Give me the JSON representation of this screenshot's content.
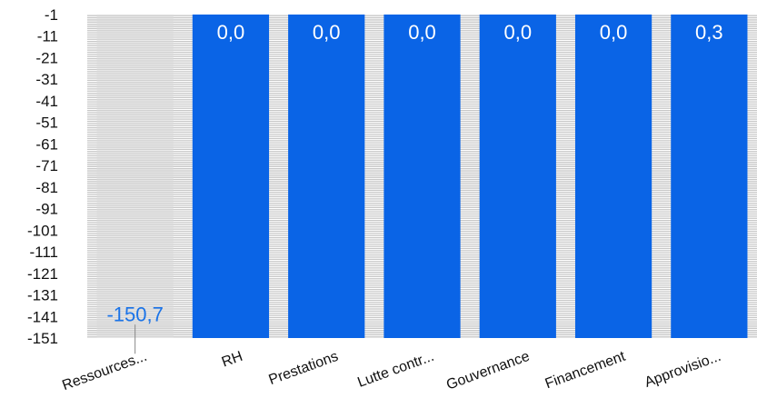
{
  "chart_data": {
    "type": "bar",
    "categories": [
      "Ressources...",
      "RH",
      "Prestations",
      "Lutte contr...",
      "Gouvernance",
      "Financement",
      "Approvisio..."
    ],
    "values": [
      -150.7,
      0.0,
      0.0,
      0.0,
      0.0,
      0.0,
      0.3
    ],
    "data_labels": [
      "-150,7",
      "0,0",
      "0,0",
      "0,0",
      "0,0",
      "0,0",
      "0,3"
    ],
    "y_ticks": [
      "-1",
      "-11",
      "-21",
      "-31",
      "-41",
      "-51",
      "-61",
      "-71",
      "-81",
      "-91",
      "-101",
      "-111",
      "-121",
      "-131",
      "-141",
      "-151"
    ],
    "ylim": [
      -151,
      -1
    ],
    "title": "",
    "xlabel": "",
    "ylabel": "",
    "grid": true,
    "legend": "none",
    "colors": {
      "bar": "#0a64e6",
      "negative_bar_area": "#d8d8d8",
      "plot_background": "#c7c7c7",
      "gridline": "#ffffff",
      "negative_label": "#1a73e8",
      "positive_label": "#ffffff"
    }
  }
}
